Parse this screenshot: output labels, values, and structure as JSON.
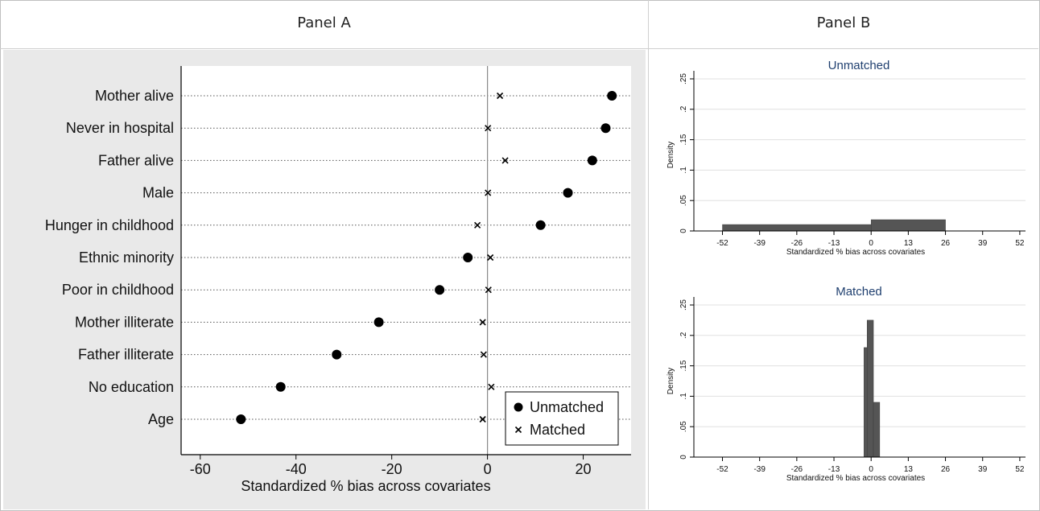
{
  "header": {
    "panel_a": "Panel A",
    "panel_b": "Panel B"
  },
  "chart_data": [
    {
      "type": "scatter",
      "panel": "Panel A",
      "title": "",
      "xlabel": "Standardized % bias across covariates",
      "ylabel": "",
      "xlim": [
        -64,
        30
      ],
      "xticks": [
        -60,
        -40,
        -20,
        0,
        20
      ],
      "grid": true,
      "legend_position": "bottom-right",
      "categories": [
        "Mother alive",
        "Never in hospital",
        "Father alive",
        "Male",
        "Hunger in childhood",
        "Ethnic minority",
        "Poor in childhood",
        "Mother illiterate",
        "Father illiterate",
        "No education",
        "Age"
      ],
      "series": [
        {
          "name": "Unmatched",
          "marker": "dot",
          "values": [
            26.0,
            24.7,
            21.9,
            16.8,
            11.1,
            -4.1,
            -10.0,
            -22.7,
            -31.5,
            -43.2,
            -51.5
          ]
        },
        {
          "name": "Matched",
          "marker": "x",
          "values": [
            2.6,
            0.1,
            3.7,
            0.1,
            -2.1,
            0.6,
            0.2,
            -1.0,
            -0.8,
            0.8,
            -1.0
          ]
        }
      ]
    },
    {
      "type": "bar",
      "panel": "Panel B",
      "title": "Unmatched",
      "xlabel": "Standardized % bias across covariates",
      "ylabel": "Density",
      "xlim": [
        -62,
        54
      ],
      "ylim": [
        0,
        0.25
      ],
      "xticks": [
        -52,
        -39,
        -26,
        -13,
        0,
        13,
        26,
        39,
        52
      ],
      "yticks": [
        "0",
        ".05",
        ".1",
        ".15",
        ".2",
        ".25"
      ],
      "bins": [
        {
          "from": -52,
          "to": 0,
          "density": 0.0105
        },
        {
          "from": 0,
          "to": 26,
          "density": 0.0185
        }
      ]
    },
    {
      "type": "bar",
      "panel": "Panel B",
      "title": "Matched",
      "xlabel": "Standardized % bias across covariates",
      "ylabel": "Density",
      "xlim": [
        -62,
        54
      ],
      "ylim": [
        0,
        0.25
      ],
      "xticks": [
        -52,
        -39,
        -26,
        -13,
        0,
        13,
        26,
        39,
        52
      ],
      "yticks": [
        "0",
        ".05",
        ".1",
        ".15",
        ".2",
        ".25"
      ],
      "bins": [
        {
          "from": -2.5,
          "to": -1.4,
          "density": 0.18
        },
        {
          "from": -1.4,
          "to": 0.8,
          "density": 0.225
        },
        {
          "from": 0.8,
          "to": 3.0,
          "density": 0.09
        }
      ]
    }
  ],
  "colors": {
    "panel_bg": "#e9e9e9",
    "plot_bg": "#ffffff",
    "bar": "#555555",
    "title_blue": "#1f3f6f",
    "marker": "#000000",
    "grid": "#e0e0e0"
  }
}
